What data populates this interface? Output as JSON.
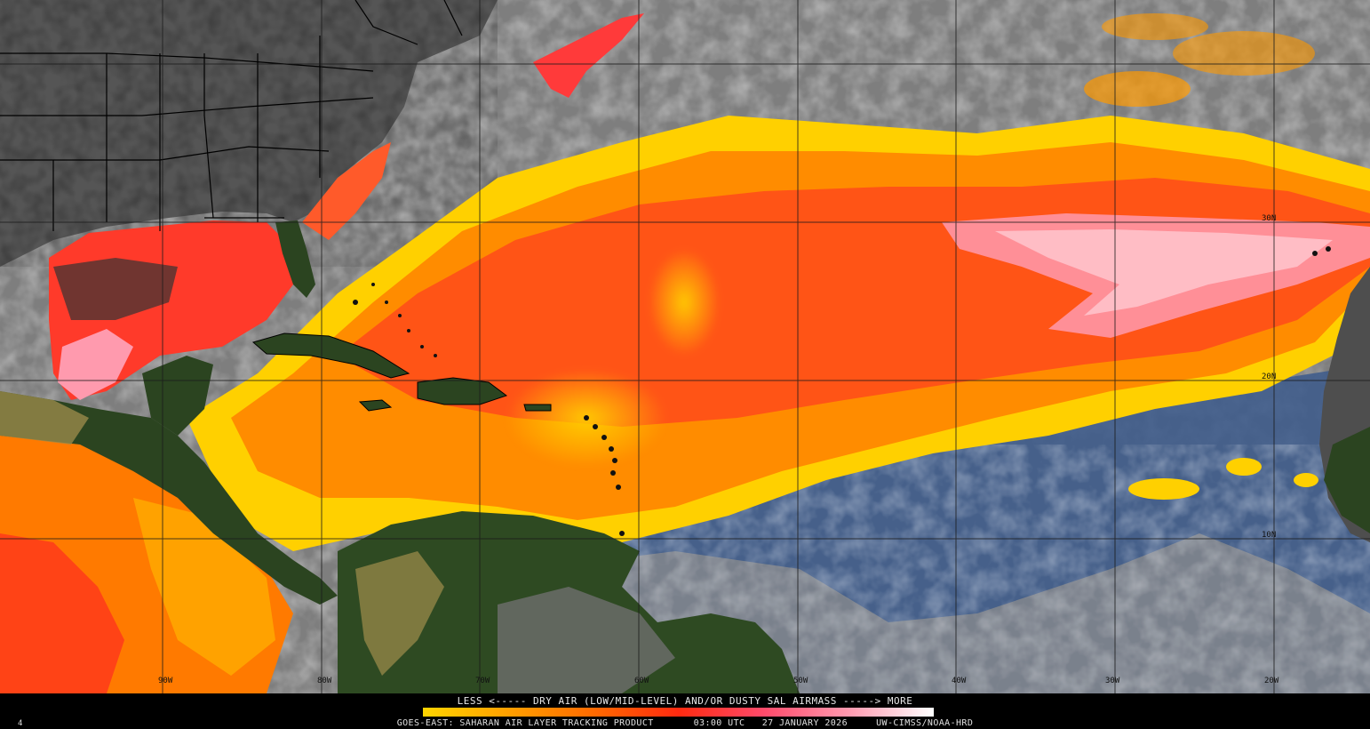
{
  "map": {
    "longitude_labels": [
      "90W",
      "80W",
      "70W",
      "60W",
      "50W",
      "40W",
      "30W",
      "20W"
    ],
    "latitude_labels": [
      "30N",
      "20N",
      "10N"
    ],
    "colors": {
      "land": "#27401f",
      "land_dry": "#9a8a4a",
      "cloud_gray": "#8a8a8a",
      "land_gray": "#5a5a5a",
      "ocean_blue": "#3a5a8e",
      "sal_yellow": "#ffd400",
      "sal_orange": "#ff8a00",
      "sal_red": "#ff3a1a",
      "sal_pink": "#ff8fa8"
    }
  },
  "legend": {
    "caption": "LESS <----- DRY AIR (LOW/MID-LEVEL) AND/OR DUSTY SAL AIRMASS -----> MORE",
    "gradient": [
      "#ffd400",
      "#ffa000",
      "#ff6a00",
      "#ff2a10",
      "#ff4a6a",
      "#ff9ab0",
      "#ffffff"
    ]
  },
  "footer": {
    "source": "GOES-EAST:",
    "product": "SAHARAN AIR LAYER TRACKING PRODUCT",
    "time": "03:00 UTC",
    "date": "27 JANUARY 2026",
    "credit": "UW-CIMSS/NOAA-HRD",
    "frame": "4"
  }
}
